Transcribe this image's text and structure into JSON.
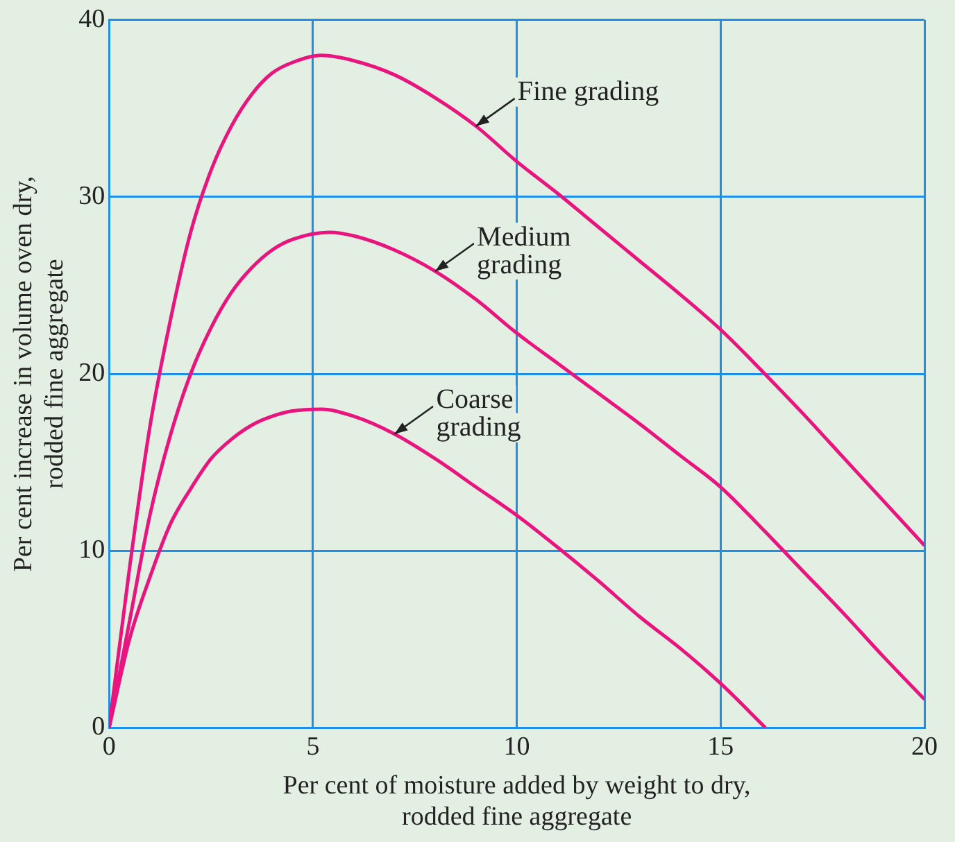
{
  "chart_data": {
    "type": "line",
    "xlabel": "Per cent of moisture added by weight to dry,\nrodded fine aggregate",
    "ylabel": "Per cent increase in volume oven dry,\nrodded fine aggregate",
    "xlim": [
      0,
      20
    ],
    "xticks": [
      0,
      5,
      10,
      15,
      20
    ],
    "ylim": [
      0,
      40
    ],
    "yticks": [
      0,
      10,
      20,
      30,
      40
    ],
    "grid": true,
    "legend": false,
    "marker": "none",
    "line_style": "solid",
    "series": [
      {
        "color": "#e8157f",
        "x": [
          0,
          0.5,
          1,
          1.5,
          2,
          2.5,
          3,
          3.5,
          4,
          4.5,
          5.2,
          6,
          7,
          8,
          9,
          10,
          11,
          12,
          13,
          14,
          15,
          16,
          17,
          18,
          19,
          20
        ],
        "values": [
          0,
          9,
          17,
          23,
          28,
          31.5,
          34,
          35.8,
          37,
          37.6,
          38,
          37.7,
          36.9,
          35.6,
          34,
          32,
          30.2,
          28.3,
          26.4,
          24.5,
          22.5,
          20.2,
          17.8,
          15.3,
          12.8,
          10.3
        ]
      },
      {
        "color": "#e8157f",
        "x": [
          0,
          0.5,
          1,
          1.5,
          2,
          2.5,
          3,
          3.5,
          4,
          4.5,
          5.4,
          6,
          7,
          8,
          9,
          10,
          11,
          12,
          13,
          14,
          15,
          16,
          17,
          18,
          19,
          20
        ],
        "values": [
          0,
          6,
          12,
          16.5,
          20,
          22.6,
          24.6,
          26,
          27,
          27.6,
          28,
          27.8,
          27,
          25.8,
          24.2,
          22.3,
          20.6,
          18.9,
          17.2,
          15.4,
          13.6,
          11.3,
          8.9,
          6.5,
          4,
          1.6
        ]
      },
      {
        "color": "#e8157f",
        "x": [
          0,
          0.5,
          1,
          1.5,
          2,
          2.5,
          3,
          3.5,
          4,
          4.5,
          5.2,
          6,
          7,
          8,
          9,
          10,
          11,
          12,
          13,
          14,
          15,
          16.1
        ],
        "values": [
          0,
          5,
          8.5,
          11.5,
          13.5,
          15.2,
          16.3,
          17.1,
          17.6,
          17.9,
          18,
          17.6,
          16.6,
          15.2,
          13.6,
          12,
          10.2,
          8.3,
          6.3,
          4.5,
          2.5,
          0
        ]
      }
    ],
    "annotations": [
      {
        "text": "Fine grading",
        "x": 9,
        "y": 34
      },
      {
        "text": "Medium\ngrading",
        "x": 8,
        "y": 25.8
      },
      {
        "text": "Coarse\ngrading",
        "x": 7,
        "y": 16.6
      }
    ]
  }
}
